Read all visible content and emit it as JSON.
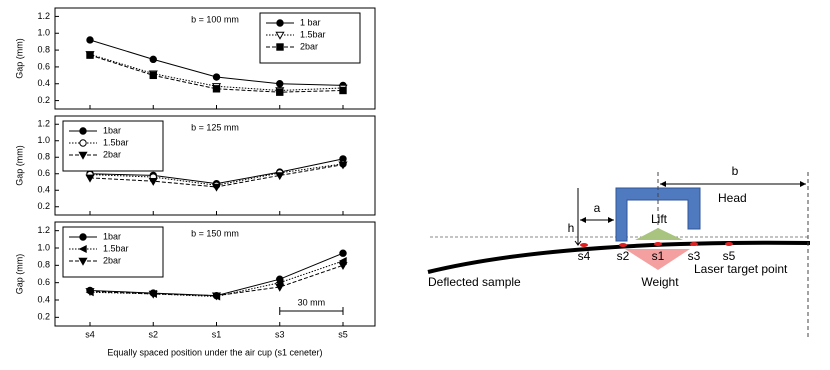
{
  "chart_data": [
    {
      "type": "line",
      "annotation": "b = 100 mm",
      "ylabel": "Gap (mm)",
      "legend": "upper right",
      "ylim": [
        0.1,
        1.3
      ],
      "yticks": [
        0.2,
        0.4,
        0.6,
        0.8,
        {
          "value": 1,
          "label": "1.0"
        },
        1.2
      ],
      "series": [
        {
          "name": "1 bar",
          "color": "#000000",
          "marker": "circle",
          "dash": "solid",
          "values": [
            0.92,
            0.69,
            0.48,
            0.4,
            0.38
          ]
        },
        {
          "name": "1.5bar",
          "color": "#000000",
          "marker": "triangle-down-open",
          "dash": "dotted",
          "values": [
            0.75,
            0.52,
            0.37,
            0.32,
            0.35
          ]
        },
        {
          "name": "2bar",
          "color": "#000000",
          "marker": "square",
          "dash": "dashed",
          "values": [
            0.74,
            0.5,
            0.34,
            0.3,
            0.32
          ]
        }
      ]
    },
    {
      "type": "line",
      "annotation": "b = 125 mm",
      "ylabel": "Gap (mm)",
      "legend": "upper left",
      "ylim": [
        0.1,
        1.3
      ],
      "yticks": [
        0.2,
        0.4,
        0.6,
        0.8,
        {
          "value": 1,
          "label": "1.0"
        },
        1.2
      ],
      "series": [
        {
          "name": "1bar",
          "color": "#000000",
          "marker": "circle",
          "dash": "solid",
          "values": [
            0.6,
            0.58,
            0.48,
            0.62,
            0.78
          ]
        },
        {
          "name": "1.5bar",
          "color": "#000000",
          "marker": "circle-open",
          "dash": "dotted",
          "values": [
            0.59,
            0.56,
            0.46,
            0.61,
            0.72
          ]
        },
        {
          "name": "2bar",
          "color": "#000000",
          "marker": "triangle-down",
          "dash": "dashed",
          "values": [
            0.55,
            0.51,
            0.44,
            0.58,
            0.71
          ]
        }
      ]
    },
    {
      "type": "line",
      "annotation": "b = 150 mm",
      "ylabel": "Gap (mm)",
      "legend": "upper left",
      "xlabel": "Equally spaced position under the air cup (s1 ceneter)",
      "span_label": "30 mm",
      "categories": [
        "s4",
        "s2",
        "s1",
        "s3",
        "s5"
      ],
      "ylim": [
        0.1,
        1.3
      ],
      "yticks": [
        0.2,
        0.4,
        0.6,
        0.8,
        {
          "value": 1,
          "label": "1.0"
        },
        1.2
      ],
      "series": [
        {
          "name": "1bar",
          "color": "#000000",
          "marker": "circle",
          "dash": "solid",
          "values": [
            0.51,
            0.48,
            0.45,
            0.64,
            0.94
          ]
        },
        {
          "name": "1.5bar",
          "color": "#000000",
          "marker": "triangle-left",
          "dash": "dotted",
          "values": [
            0.49,
            0.47,
            0.44,
            0.6,
            0.85
          ]
        },
        {
          "name": "2bar",
          "color": "#000000",
          "marker": "triangle-down",
          "dash": "dashed",
          "values": [
            0.5,
            0.47,
            0.45,
            0.55,
            0.8
          ]
        }
      ]
    }
  ],
  "diagram": {
    "head": "Head",
    "b": "b",
    "a": "a",
    "h": "h",
    "lift": "Lift",
    "weight": "Weight",
    "sample": "Deflected sample",
    "laser": "Laser target point",
    "positions": [
      "s4",
      "s2",
      "s1",
      "s3",
      "s5"
    ]
  }
}
